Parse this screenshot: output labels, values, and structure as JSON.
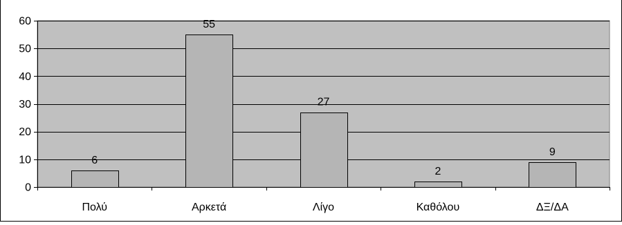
{
  "chart_data": {
    "type": "bar",
    "categories": [
      "Πολύ",
      "Αρκετά",
      "Λίγο",
      "Καθόλου",
      "ΔΞ/ΔΑ"
    ],
    "values": [
      6,
      55,
      27,
      2,
      9
    ],
    "data_labels": [
      "6",
      "55",
      "27",
      "2",
      "9"
    ],
    "title": "",
    "xlabel": "",
    "ylabel": "",
    "ylim": [
      0,
      60
    ],
    "yticks": [
      0,
      10,
      20,
      30,
      40,
      50,
      60
    ],
    "ytick_labels": [
      "0",
      "10",
      "20",
      "30",
      "40",
      "50",
      "60"
    ],
    "grid": true,
    "legend": "none",
    "colors": {
      "plot_background": "#c0c0c0",
      "bar_fill": "#b5b5b5",
      "bar_stroke": "#000000",
      "grid": "#000000"
    }
  }
}
